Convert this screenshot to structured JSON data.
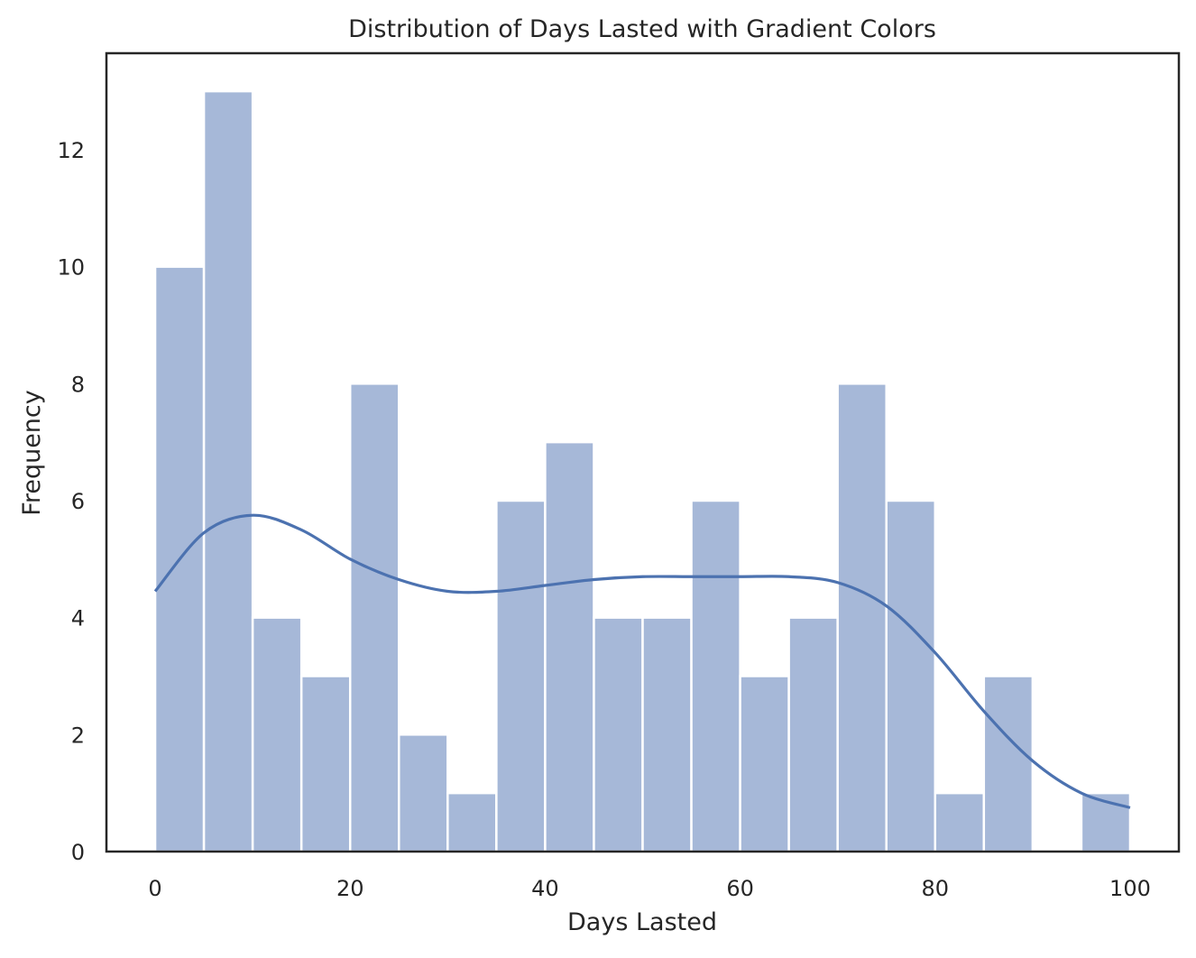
{
  "chart_data": {
    "type": "bar",
    "title": "Distribution of Days Lasted with Gradient Colors",
    "xlabel": "Days Lasted",
    "ylabel": "Frequency",
    "xlim": [
      -5,
      105
    ],
    "ylim": [
      0,
      13.65
    ],
    "grid": false,
    "x_ticks": [
      0,
      20,
      40,
      60,
      80,
      100
    ],
    "y_ticks": [
      0,
      2,
      4,
      6,
      8,
      10,
      12
    ],
    "bin_edges": [
      0,
      5,
      10,
      15,
      20,
      25,
      30,
      35,
      40,
      45,
      50,
      55,
      60,
      65,
      70,
      75,
      80,
      85,
      90,
      95,
      100
    ],
    "values": [
      10,
      13,
      4,
      3,
      8,
      2,
      1,
      6,
      7,
      4,
      4,
      6,
      3,
      4,
      8,
      6,
      1,
      3,
      0,
      1
    ],
    "bar_color": "#a6b8d8",
    "bar_edge_color": "#ffffff",
    "kde": {
      "x": [
        0,
        5,
        10,
        15,
        20,
        25,
        30,
        35,
        40,
        45,
        50,
        55,
        60,
        65,
        70,
        75,
        80,
        85,
        90,
        95,
        100
      ],
      "y": [
        4.45,
        5.45,
        5.75,
        5.5,
        5.0,
        4.65,
        4.45,
        4.45,
        4.55,
        4.65,
        4.7,
        4.7,
        4.7,
        4.7,
        4.6,
        4.2,
        3.4,
        2.4,
        1.55,
        1.0,
        0.75
      ],
      "color": "#4c72b0"
    }
  }
}
